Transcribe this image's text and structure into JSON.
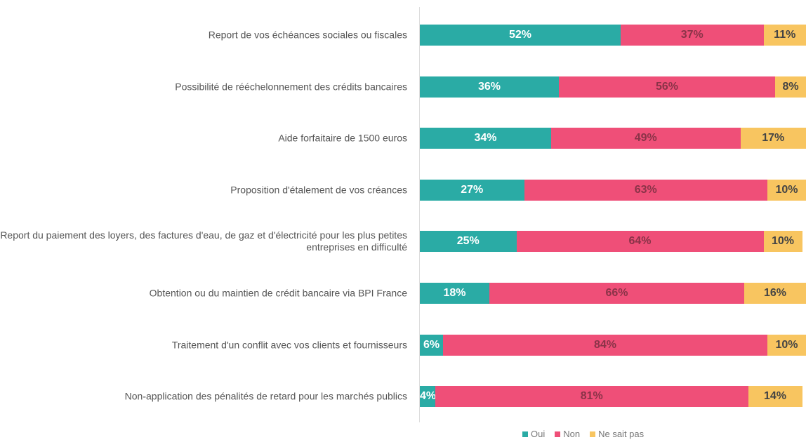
{
  "chart_data": {
    "type": "stacked-bar-horizontal",
    "categories": [
      "Report de vos échéances sociales ou fiscales",
      "Possibilité de rééchelonnement des crédits bancaires",
      "Aide forfaitaire de 1500 euros",
      "Proposition d'étalement de vos créances",
      "Report du paiement des loyers, des factures d'eau, de gaz et d'électricité pour les plus petites entreprises en difficulté",
      "Obtention ou du maintien de crédit bancaire via BPI France",
      "Traitement d'un conflit avec vos clients et fournisseurs",
      "Non-application des pénalités de retard pour les marchés publics"
    ],
    "series": [
      {
        "name": "Oui",
        "color": "#2aaba5",
        "values": [
          52,
          36,
          34,
          27,
          25,
          18,
          6,
          4
        ],
        "value_labels": [
          "52%",
          "36%",
          "34%",
          "27%",
          "25%",
          "18%",
          "6%",
          "4%"
        ]
      },
      {
        "name": "Non",
        "color": "#ef4f78",
        "values": [
          37,
          56,
          49,
          63,
          64,
          66,
          84,
          81
        ],
        "value_labels": [
          "37%",
          "56%",
          "49%",
          "63%",
          "64%",
          "66%",
          "84%",
          "81%"
        ]
      },
      {
        "name": "Ne sait pas",
        "color": "#f8c560",
        "values": [
          11,
          8,
          17,
          10,
          10,
          16,
          10,
          14
        ],
        "value_labels": [
          "11%",
          "8%",
          "17%",
          "10%",
          "10%",
          "16%",
          "10%",
          "14%"
        ]
      }
    ],
    "legend": "bottom"
  }
}
